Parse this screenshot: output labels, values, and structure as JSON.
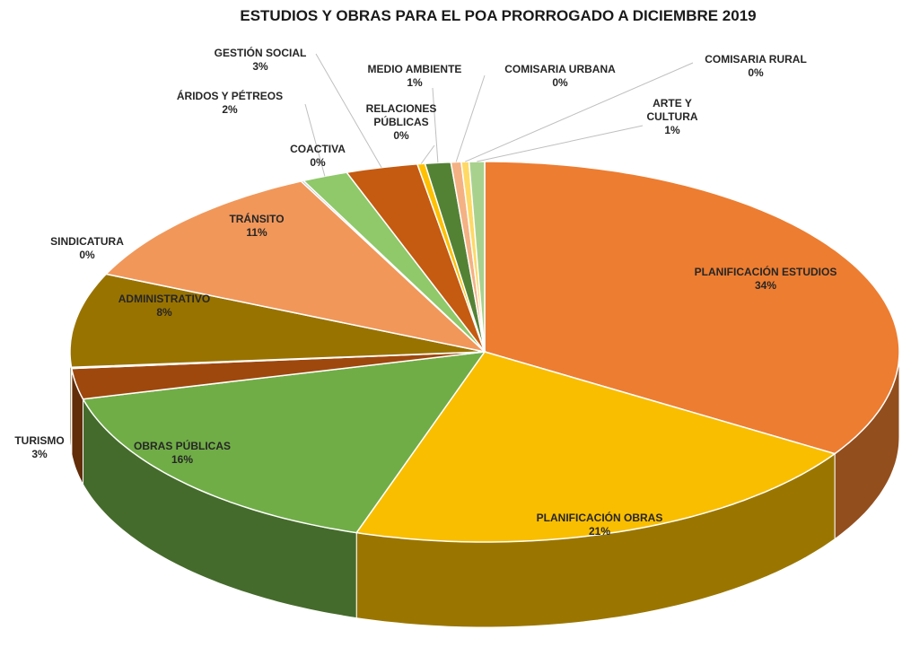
{
  "chart_data": {
    "type": "pie",
    "title": "ESTUDIOS Y OBRAS PARA EL POA PRORROGADO  A DICIEMBRE 2019",
    "categories": [
      "PLANIFICACIÓN ESTUDIOS",
      "PLANIFICACIÓN OBRAS",
      "OBRAS PÚBLICAS",
      "TURISMO",
      "SINDICATURA",
      "ADMINISTRATIVO",
      "TRÁNSITO",
      "COACTIVA",
      "ÁRIDOS Y PÉTREOS",
      "GESTIÓN SOCIAL",
      "RELACIONES PÚBLICAS",
      "MEDIO AMBIENTE",
      "COMISARIA URBANA",
      "COMISARIA RURAL",
      "ARTE Y CULTURA"
    ],
    "values": [
      34.0,
      21.0,
      16.0,
      2.6,
      0.1,
      8.0,
      11.0,
      0.1,
      1.8,
      2.8,
      0.3,
      1.0,
      0.4,
      0.3,
      0.6
    ],
    "value_labels": [
      "34%",
      "21%",
      "16%",
      "3%",
      "0%",
      "8%",
      "11%",
      "0%",
      "2%",
      "3%",
      "0%",
      "1%",
      "0%",
      "0%",
      "1%"
    ],
    "colors": [
      "#ED7D31",
      "#F9BE00",
      "#70AD47",
      "#9E480E",
      "#636363",
      "#997300",
      "#F1975A",
      "#B7B7B7",
      "#8FC96A",
      "#C55A11",
      "#FFC000",
      "#548235",
      "#F4B183",
      "#FFD966",
      "#A9D18E"
    ]
  }
}
